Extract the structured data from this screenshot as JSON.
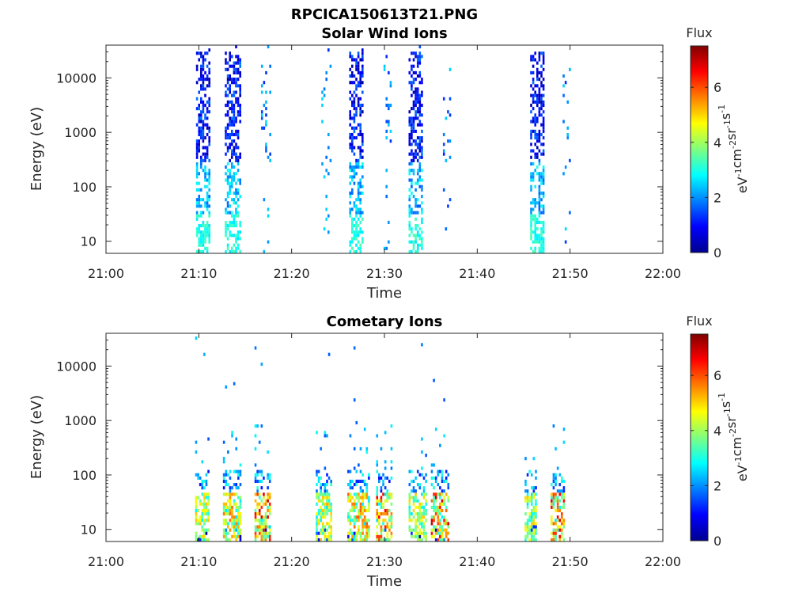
{
  "figure": {
    "title": "RPCICA150613T21.PNG"
  },
  "colorbar": {
    "title": "Flux",
    "label_html": "eV⁻¹cm⁻²sr⁻¹s⁻¹",
    "label_parts": [
      "eV",
      "-1",
      "cm",
      "-2",
      "sr",
      "-1",
      "s",
      "-1"
    ],
    "range": [
      0,
      7.5
    ],
    "ticks": [
      "0",
      "2",
      "4",
      "6"
    ],
    "colormap": "jet"
  },
  "chart_data": [
    {
      "type": "heatmap",
      "title": "Solar Wind Ions",
      "xlabel": "Time",
      "ylabel": "Energy (eV)",
      "x_ticks": [
        "21:00",
        "21:10",
        "21:20",
        "21:30",
        "21:40",
        "21:50",
        "22:00"
      ],
      "x_range_minutes": [
        0,
        60
      ],
      "y_scale": "log",
      "y_ticks": [
        "10",
        "100",
        "1000",
        "10000"
      ],
      "y_range": [
        6,
        40000
      ],
      "bursts": [
        {
          "center_min": 10.5,
          "width_min": 1.6,
          "profile": "solarwind",
          "max_flux": 3.2
        },
        {
          "center_min": 13.7,
          "width_min": 1.8,
          "profile": "solarwind",
          "max_flux": 3.0
        },
        {
          "center_min": 17.2,
          "width_min": 1.0,
          "profile": "sparse",
          "max_flux": 2.2
        },
        {
          "center_min": 23.8,
          "width_min": 1.2,
          "profile": "sparse",
          "max_flux": 2.4
        },
        {
          "center_min": 27.0,
          "width_min": 1.6,
          "profile": "solarwind",
          "max_flux": 3.2
        },
        {
          "center_min": 30.3,
          "width_min": 0.8,
          "profile": "sparse",
          "max_flux": 2.0
        },
        {
          "center_min": 33.4,
          "width_min": 1.6,
          "profile": "solarwind",
          "max_flux": 3.0
        },
        {
          "center_min": 36.7,
          "width_min": 0.8,
          "profile": "sparse",
          "max_flux": 2.0
        },
        {
          "center_min": 46.5,
          "width_min": 1.6,
          "profile": "solarwind",
          "max_flux": 3.2
        },
        {
          "center_min": 49.6,
          "width_min": 0.8,
          "profile": "sparse",
          "max_flux": 2.0
        }
      ]
    },
    {
      "type": "heatmap",
      "title": "Cometary Ions",
      "xlabel": "Time",
      "ylabel": "Energy (eV)",
      "x_ticks": [
        "21:00",
        "21:10",
        "21:20",
        "21:30",
        "21:40",
        "21:50",
        "22:00"
      ],
      "x_range_minutes": [
        0,
        60
      ],
      "y_scale": "log",
      "y_ticks": [
        "10",
        "100",
        "1000",
        "10000"
      ],
      "y_range": [
        6,
        40000
      ],
      "bursts": [
        {
          "center_min": 10.4,
          "width_min": 1.6,
          "profile": "cometary",
          "max_flux": 5.0
        },
        {
          "center_min": 13.6,
          "width_min": 2.0,
          "profile": "cometary",
          "max_flux": 5.6
        },
        {
          "center_min": 16.9,
          "width_min": 1.8,
          "profile": "cometary",
          "max_flux": 6.8
        },
        {
          "center_min": 23.5,
          "width_min": 1.8,
          "profile": "cometary",
          "max_flux": 5.2
        },
        {
          "center_min": 27.2,
          "width_min": 2.4,
          "profile": "cometary",
          "max_flux": 5.8
        },
        {
          "center_min": 30.0,
          "width_min": 1.8,
          "profile": "cometary",
          "max_flux": 6.4
        },
        {
          "center_min": 33.6,
          "width_min": 2.0,
          "profile": "cometary",
          "max_flux": 5.0
        },
        {
          "center_min": 36.0,
          "width_min": 2.0,
          "profile": "cometary",
          "max_flux": 6.8
        },
        {
          "center_min": 45.8,
          "width_min": 1.4,
          "profile": "cometary",
          "max_flux": 5.0
        },
        {
          "center_min": 48.7,
          "width_min": 1.6,
          "profile": "cometary",
          "max_flux": 6.6
        }
      ]
    }
  ]
}
